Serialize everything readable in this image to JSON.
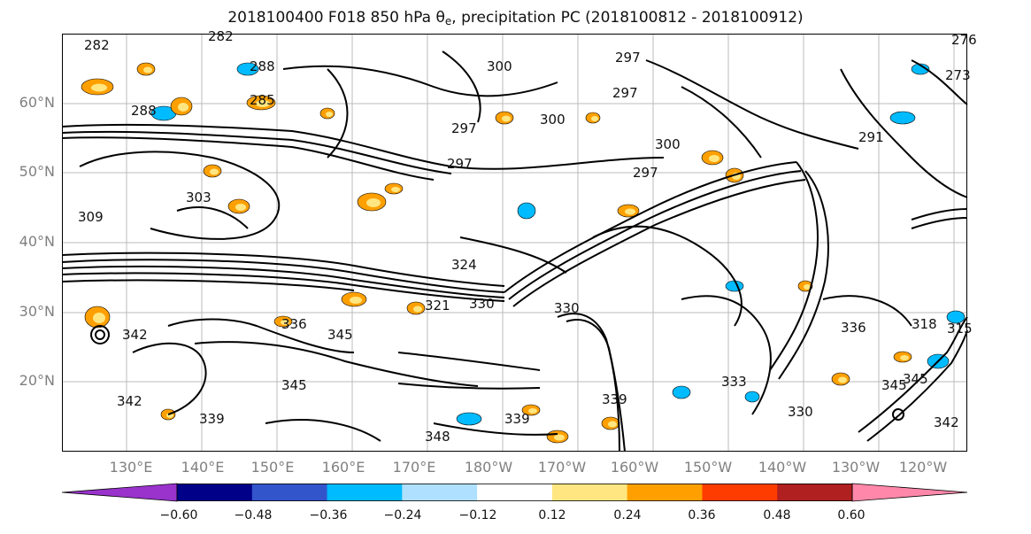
{
  "title": {
    "main": "2018100400 F018 850 hPa θ",
    "subscript": "e",
    "rest": ", precipitation PC (2018100812 - 2018100912)"
  },
  "lat_labels": [
    "60°N",
    "50°N",
    "40°N",
    "30°N",
    "20°N"
  ],
  "lon_labels": [
    "130°E",
    "140°E",
    "150°E",
    "160°E",
    "170°E",
    "180°W",
    "170°W",
    "160°W",
    "150°W",
    "140°W",
    "130°W",
    "120°W"
  ],
  "contour_labels": [
    "282",
    "282",
    "288",
    "288",
    "285",
    "297",
    "300",
    "300",
    "297",
    "297",
    "300",
    "291",
    "273",
    "276",
    "309",
    "303",
    "297",
    "297",
    "324",
    "321",
    "330",
    "336",
    "330",
    "342",
    "345",
    "345",
    "345",
    "339",
    "342",
    "348",
    "339",
    "339",
    "330",
    "333",
    "336",
    "318",
    "315",
    "345",
    "342"
  ],
  "colorbar": {
    "ticks": [
      "−0.60",
      "−0.48",
      "−0.36",
      "−0.24",
      "−0.12",
      "0.12",
      "0.24",
      "0.36",
      "0.48",
      "0.60"
    ],
    "colors": [
      "#9933cc",
      "#000088",
      "#3355cc",
      "#00bbff",
      "#b0e0ff",
      "#ffffff",
      "#ffe680",
      "#ffa000",
      "#ff3c00",
      "#b02020",
      "#ff88aa"
    ]
  }
}
